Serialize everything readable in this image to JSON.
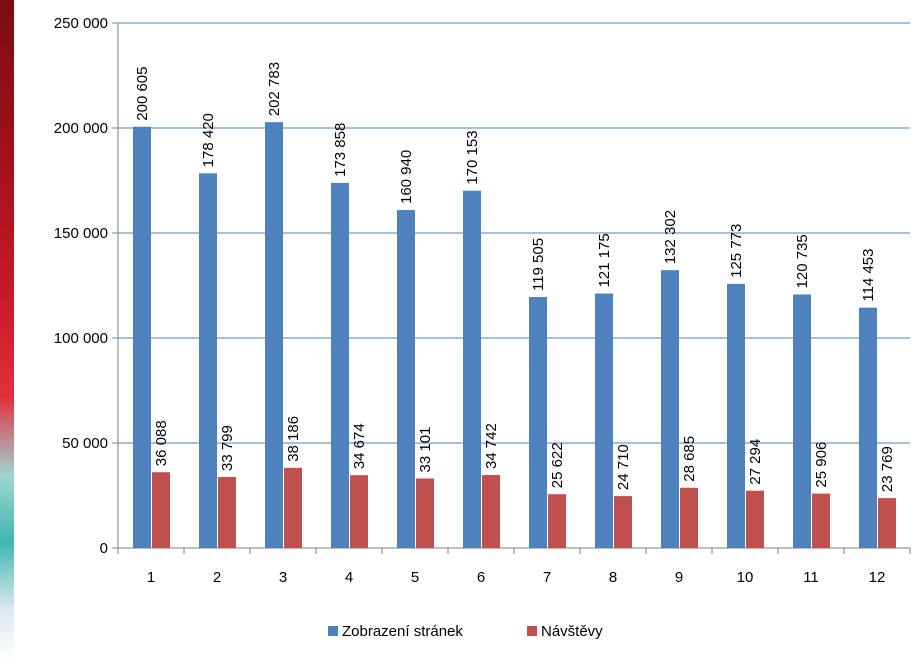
{
  "chart_data": {
    "type": "bar",
    "categories": [
      "1",
      "2",
      "3",
      "4",
      "5",
      "6",
      "7",
      "8",
      "9",
      "10",
      "11",
      "12"
    ],
    "series": [
      {
        "name": "Zobrazení stránek",
        "color": "#4F81BD",
        "values": [
          200605,
          178420,
          202783,
          173858,
          160940,
          170153,
          119505,
          121175,
          132302,
          125773,
          120735,
          114453
        ],
        "labels": [
          "200 605",
          "178 420",
          "202 783",
          "173 858",
          "160 940",
          "170 153",
          "119 505",
          "121 175",
          "132 302",
          "125 773",
          "120 735",
          "114 453"
        ]
      },
      {
        "name": "Návštěvy",
        "color": "#C0504D",
        "values": [
          36088,
          33799,
          38186,
          34674,
          33101,
          34742,
          25622,
          24710,
          28685,
          27294,
          25906,
          23769
        ],
        "labels": [
          "36 088",
          "33 799",
          "38 186",
          "34 674",
          "33 101",
          "34 742",
          "25 622",
          "24 710",
          "28 685",
          "27 294",
          "25 906",
          "23 769"
        ]
      }
    ],
    "ylim": [
      0,
      250000
    ],
    "yticks": [
      0,
      50000,
      100000,
      150000,
      200000,
      250000
    ],
    "ytick_labels": [
      "0",
      "50 000",
      "100 000",
      "150 000",
      "200 000",
      "250 000"
    ],
    "grid": true,
    "gridline_color": "#4F81BD",
    "legend_position": "bottom",
    "title": "",
    "xlabel": "",
    "ylabel": ""
  }
}
